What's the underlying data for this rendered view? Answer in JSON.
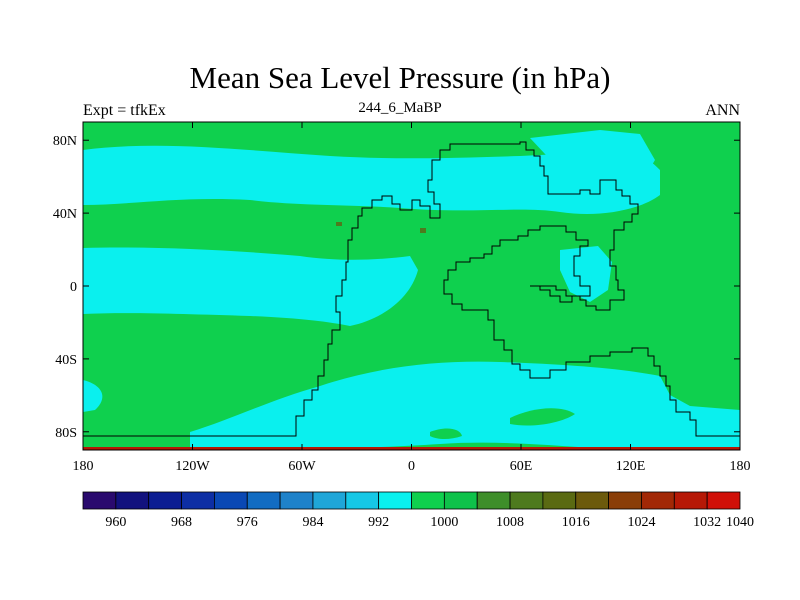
{
  "title": "Mean Sea Level Pressure (in hPa)",
  "subtitle": "244_6_MaBP",
  "left_label": "Expt = tfkEx",
  "right_label": "ANN",
  "chart_data": {
    "type": "heatmap",
    "projection": "cylindrical-equidistant",
    "variable": "Mean Sea Level Pressure",
    "units": "hPa",
    "xlim": [
      -180,
      180
    ],
    "ylim": [
      -90,
      90
    ],
    "x_ticks": [
      {
        "value": -180,
        "label": "180"
      },
      {
        "value": -120,
        "label": "120W"
      },
      {
        "value": -60,
        "label": "60W"
      },
      {
        "value": 0,
        "label": "0"
      },
      {
        "value": 60,
        "label": "60E"
      },
      {
        "value": 120,
        "label": "120E"
      },
      {
        "value": 180,
        "label": "180"
      }
    ],
    "y_ticks": [
      {
        "value": 80,
        "label": "80N"
      },
      {
        "value": 40,
        "label": "40N"
      },
      {
        "value": 0,
        "label": "0"
      },
      {
        "value": -40,
        "label": "40S"
      },
      {
        "value": -80,
        "label": "80S"
      }
    ],
    "colorbar": {
      "boxes": [
        "#2a0a6e",
        "#12127e",
        "#0c1d92",
        "#0d2ea4",
        "#0a48b4",
        "#126cc2",
        "#1e82ca",
        "#1fa6d8",
        "#16c8e6",
        "#0af0ee",
        "#0fd04e",
        "#0ec24a",
        "#3e8e2a",
        "#4e7a1e",
        "#5a6a12",
        "#6c5a0c",
        "#8a3e08",
        "#a22806",
        "#b61806",
        "#d01008"
      ],
      "labels": [
        {
          "index": 1,
          "text": "960"
        },
        {
          "index": 3,
          "text": "968"
        },
        {
          "index": 5,
          "text": "976"
        },
        {
          "index": 7,
          "text": "984"
        },
        {
          "index": 9,
          "text": "992"
        },
        {
          "index": 11,
          "text": "1000"
        },
        {
          "index": 13,
          "text": "1008"
        },
        {
          "index": 15,
          "text": "1016"
        },
        {
          "index": 17,
          "text": "1024"
        },
        {
          "index": 19,
          "text": "1032"
        },
        {
          "index": 20,
          "text": "1040"
        }
      ]
    },
    "fields": {
      "low_pressure_color": "#0af0ee",
      "high_pressure_color": "#0fd04e",
      "small_high_color": "#4e7a1e",
      "polar_high_color": "#b61806"
    }
  }
}
